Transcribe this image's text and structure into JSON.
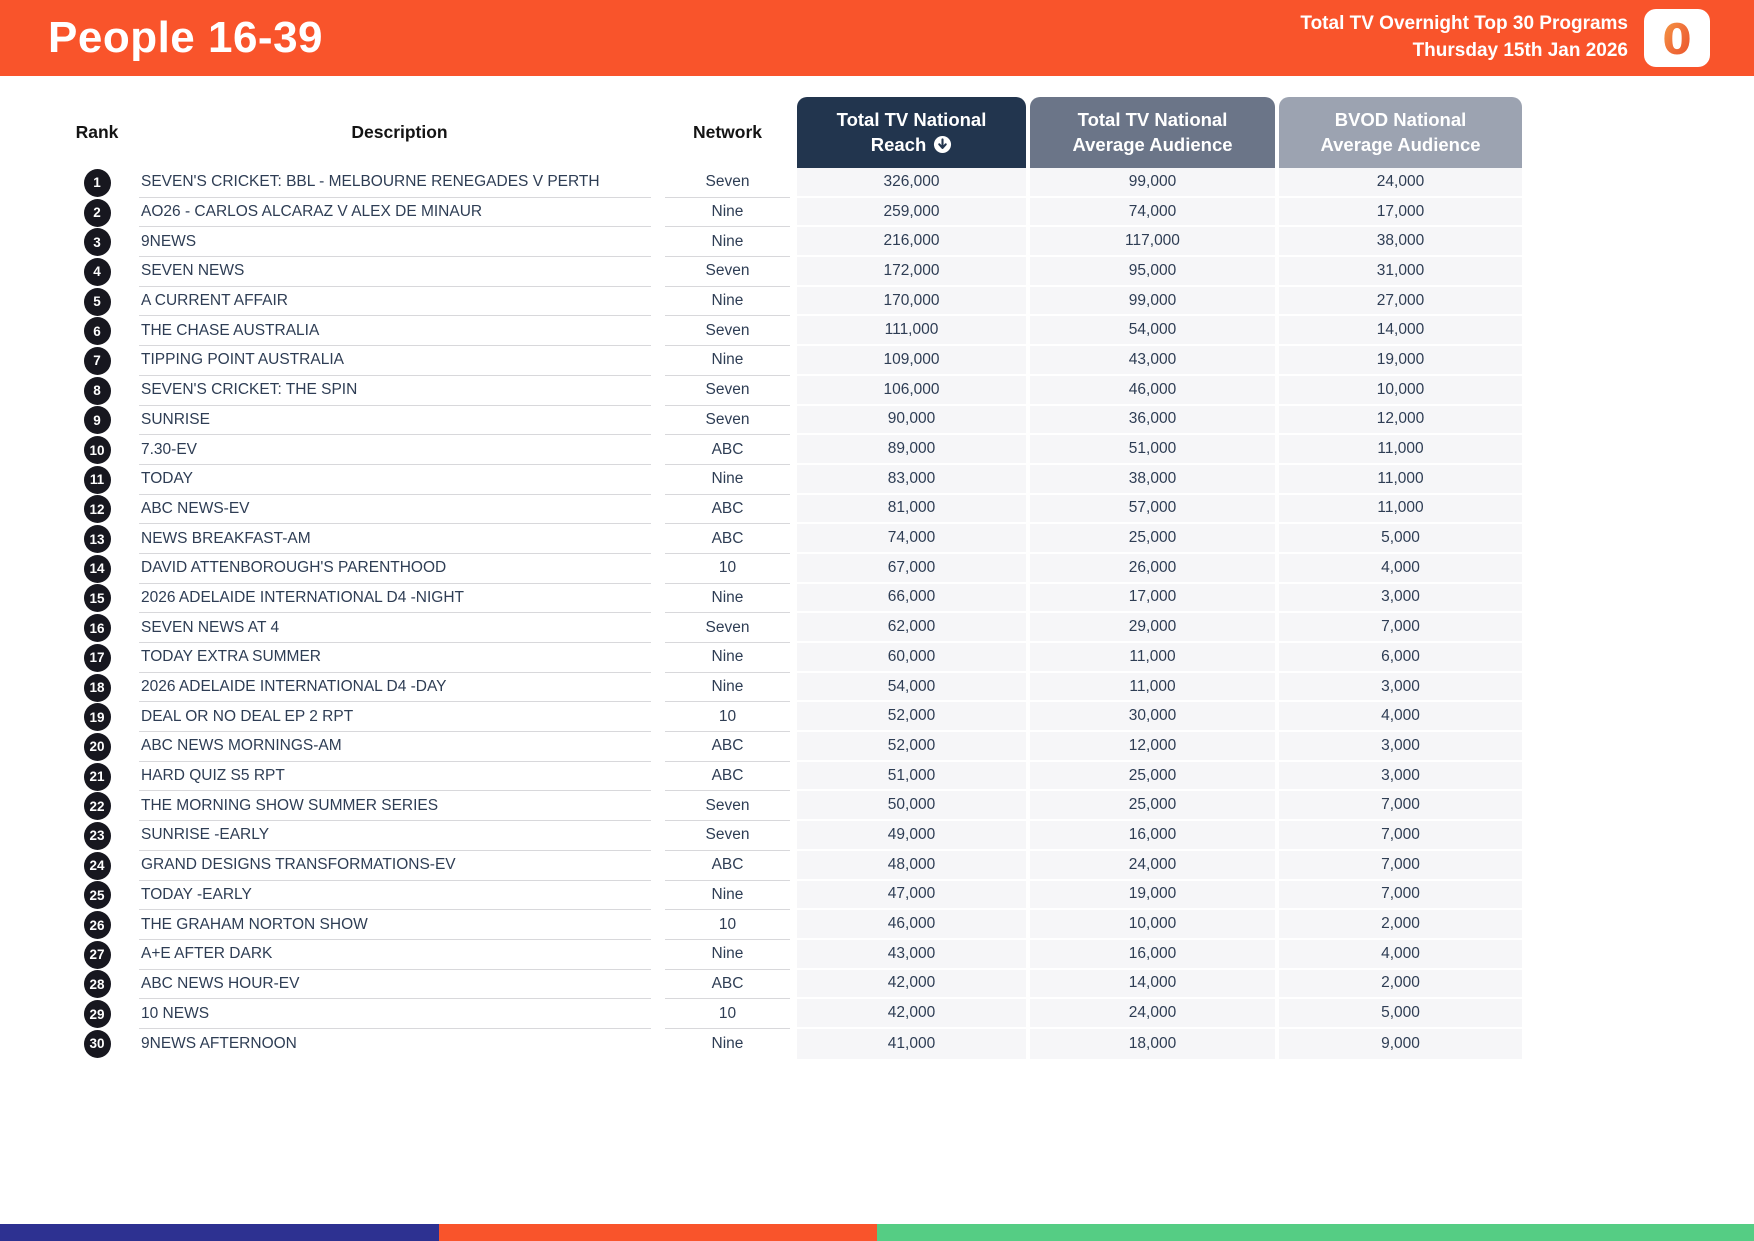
{
  "header": {
    "title": "People 16-39",
    "subtitle_line1": "Total TV Overnight Top 30 Programs",
    "subtitle_line2": "Thursday 15th Jan 2026",
    "logo_glyph": "0"
  },
  "table": {
    "header_labels": {
      "rank": "Rank",
      "description": "Description",
      "network": "Network"
    },
    "metric_columns": [
      {
        "line1": "Total TV National",
        "line2": "Reach",
        "sort": "descending"
      },
      {
        "line1": "Total TV National",
        "line2": "Average Audience",
        "sort": "none"
      },
      {
        "line1": "BVOD National",
        "line2": "Average Audience",
        "sort": "none"
      }
    ],
    "rows": [
      {
        "rank": "1",
        "description": "SEVEN'S CRICKET: BBL - MELBOURNE RENEGADES V PERTH",
        "network": "Seven",
        "reach": "326,000",
        "avg_audience": "99,000",
        "bvod_avg_audience": "24,000"
      },
      {
        "rank": "2",
        "description": "AO26 - CARLOS ALCARAZ V ALEX DE MINAUR",
        "network": "Nine",
        "reach": "259,000",
        "avg_audience": "74,000",
        "bvod_avg_audience": "17,000"
      },
      {
        "rank": "3",
        "description": "9NEWS",
        "network": "Nine",
        "reach": "216,000",
        "avg_audience": "117,000",
        "bvod_avg_audience": "38,000"
      },
      {
        "rank": "4",
        "description": "SEVEN NEWS",
        "network": "Seven",
        "reach": "172,000",
        "avg_audience": "95,000",
        "bvod_avg_audience": "31,000"
      },
      {
        "rank": "5",
        "description": "A CURRENT AFFAIR",
        "network": "Nine",
        "reach": "170,000",
        "avg_audience": "99,000",
        "bvod_avg_audience": "27,000"
      },
      {
        "rank": "6",
        "description": "THE CHASE AUSTRALIA",
        "network": "Seven",
        "reach": "111,000",
        "avg_audience": "54,000",
        "bvod_avg_audience": "14,000"
      },
      {
        "rank": "7",
        "description": "TIPPING POINT AUSTRALIA",
        "network": "Nine",
        "reach": "109,000",
        "avg_audience": "43,000",
        "bvod_avg_audience": "19,000"
      },
      {
        "rank": "8",
        "description": "SEVEN'S CRICKET: THE SPIN",
        "network": "Seven",
        "reach": "106,000",
        "avg_audience": "46,000",
        "bvod_avg_audience": "10,000"
      },
      {
        "rank": "9",
        "description": "SUNRISE",
        "network": "Seven",
        "reach": "90,000",
        "avg_audience": "36,000",
        "bvod_avg_audience": "12,000"
      },
      {
        "rank": "10",
        "description": "7.30-EV",
        "network": "ABC",
        "reach": "89,000",
        "avg_audience": "51,000",
        "bvod_avg_audience": "11,000"
      },
      {
        "rank": "11",
        "description": "TODAY",
        "network": "Nine",
        "reach": "83,000",
        "avg_audience": "38,000",
        "bvod_avg_audience": "11,000"
      },
      {
        "rank": "12",
        "description": "ABC NEWS-EV",
        "network": "ABC",
        "reach": "81,000",
        "avg_audience": "57,000",
        "bvod_avg_audience": "11,000"
      },
      {
        "rank": "13",
        "description": "NEWS BREAKFAST-AM",
        "network": "ABC",
        "reach": "74,000",
        "avg_audience": "25,000",
        "bvod_avg_audience": "5,000"
      },
      {
        "rank": "14",
        "description": "DAVID ATTENBOROUGH'S PARENTHOOD",
        "network": "10",
        "reach": "67,000",
        "avg_audience": "26,000",
        "bvod_avg_audience": "4,000"
      },
      {
        "rank": "15",
        "description": "2026 ADELAIDE INTERNATIONAL D4 -NIGHT",
        "network": "Nine",
        "reach": "66,000",
        "avg_audience": "17,000",
        "bvod_avg_audience": "3,000"
      },
      {
        "rank": "16",
        "description": "SEVEN NEWS AT 4",
        "network": "Seven",
        "reach": "62,000",
        "avg_audience": "29,000",
        "bvod_avg_audience": "7,000"
      },
      {
        "rank": "17",
        "description": "TODAY EXTRA SUMMER",
        "network": "Nine",
        "reach": "60,000",
        "avg_audience": "11,000",
        "bvod_avg_audience": "6,000"
      },
      {
        "rank": "18",
        "description": "2026 ADELAIDE INTERNATIONAL D4 -DAY",
        "network": "Nine",
        "reach": "54,000",
        "avg_audience": "11,000",
        "bvod_avg_audience": "3,000"
      },
      {
        "rank": "19",
        "description": "DEAL OR NO DEAL EP 2 RPT",
        "network": "10",
        "reach": "52,000",
        "avg_audience": "30,000",
        "bvod_avg_audience": "4,000"
      },
      {
        "rank": "20",
        "description": "ABC NEWS MORNINGS-AM",
        "network": "ABC",
        "reach": "52,000",
        "avg_audience": "12,000",
        "bvod_avg_audience": "3,000"
      },
      {
        "rank": "21",
        "description": "HARD QUIZ S5 RPT",
        "network": "ABC",
        "reach": "51,000",
        "avg_audience": "25,000",
        "bvod_avg_audience": "3,000"
      },
      {
        "rank": "22",
        "description": "THE MORNING SHOW SUMMER SERIES",
        "network": "Seven",
        "reach": "50,000",
        "avg_audience": "25,000",
        "bvod_avg_audience": "7,000"
      },
      {
        "rank": "23",
        "description": "SUNRISE -EARLY",
        "network": "Seven",
        "reach": "49,000",
        "avg_audience": "16,000",
        "bvod_avg_audience": "7,000"
      },
      {
        "rank": "24",
        "description": "GRAND DESIGNS TRANSFORMATIONS-EV",
        "network": "ABC",
        "reach": "48,000",
        "avg_audience": "24,000",
        "bvod_avg_audience": "7,000"
      },
      {
        "rank": "25",
        "description": "TODAY -EARLY",
        "network": "Nine",
        "reach": "47,000",
        "avg_audience": "19,000",
        "bvod_avg_audience": "7,000"
      },
      {
        "rank": "26",
        "description": "THE GRAHAM NORTON SHOW",
        "network": "10",
        "reach": "46,000",
        "avg_audience": "10,000",
        "bvod_avg_audience": "2,000"
      },
      {
        "rank": "27",
        "description": "A+E AFTER DARK",
        "network": "Nine",
        "reach": "43,000",
        "avg_audience": "16,000",
        "bvod_avg_audience": "4,000"
      },
      {
        "rank": "28",
        "description": "ABC NEWS HOUR-EV",
        "network": "ABC",
        "reach": "42,000",
        "avg_audience": "14,000",
        "bvod_avg_audience": "2,000"
      },
      {
        "rank": "29",
        "description": "10 NEWS",
        "network": "10",
        "reach": "42,000",
        "avg_audience": "24,000",
        "bvod_avg_audience": "5,000"
      },
      {
        "rank": "30",
        "description": "9NEWS AFTERNOON",
        "network": "Nine",
        "reach": "41,000",
        "avg_audience": "18,000",
        "bvod_avg_audience": "9,000"
      }
    ]
  },
  "colors": {
    "accent_orange": "#F9542B",
    "col_reach_bg": "#22354E",
    "col_avg_bg": "#6B7588",
    "col_bvod_bg": "#9CA3B1",
    "row_stripe_bg": "#F6F6F8",
    "badge_bg": "#17171F",
    "text_dark": "#2E3D54",
    "footer_navy": "#2D3191",
    "footer_orange": "#F9542B",
    "footer_green": "#55CD84"
  }
}
